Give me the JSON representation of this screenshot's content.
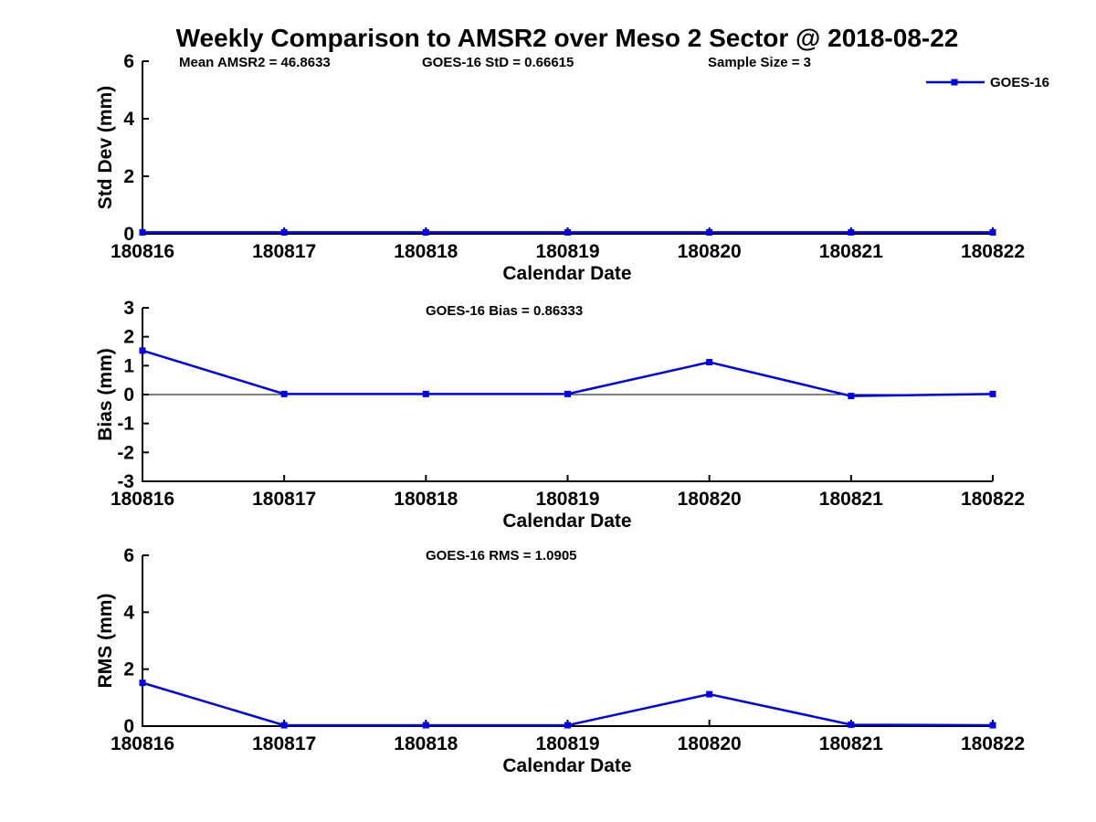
{
  "header": {
    "title": "Weekly Comparison to AMSR2 over Meso 2 Sector @ 2018-08-22",
    "annotations": [
      "Mean AMSR2 = 46.8633",
      "GOES-16 StD = 0.66615",
      "Sample Size = 3"
    ]
  },
  "legend": {
    "label": "GOES-16",
    "marker": "square",
    "color": "#0000ee"
  },
  "colors": {
    "line": "#0000ee",
    "axis": "#000000",
    "text": "#000000",
    "background": "#ffffff"
  },
  "chart_data": [
    {
      "id": "std-dev",
      "type": "line",
      "title": "",
      "xlabel": "Calendar Date",
      "ylabel": "Std Dev (mm)",
      "categories": [
        "180816",
        "180817",
        "180818",
        "180819",
        "180820",
        "180821",
        "180822"
      ],
      "series": [
        {
          "name": "GOES-16",
          "values": [
            0.05,
            0.05,
            0.05,
            0.05,
            0.05,
            0.05,
            0.05
          ]
        }
      ],
      "ylim": [
        0,
        6
      ],
      "yticks": [
        0,
        2,
        4,
        6
      ],
      "zero_line": false,
      "grid": false,
      "legend_position": "top-right-outside"
    },
    {
      "id": "bias",
      "type": "line",
      "title": "GOES-16 Bias  = 0.86333",
      "xlabel": "Calendar Date",
      "ylabel": "Bias (mm)",
      "categories": [
        "180816",
        "180817",
        "180818",
        "180819",
        "180820",
        "180821",
        "180822"
      ],
      "series": [
        {
          "name": "GOES-16",
          "values": [
            1.52,
            0.02,
            0.02,
            0.02,
            1.12,
            -0.05,
            0.02
          ]
        }
      ],
      "ylim": [
        -3,
        3
      ],
      "yticks": [
        -3,
        -2,
        -1,
        0,
        1,
        2,
        3
      ],
      "zero_line": true,
      "grid": false,
      "legend_position": "none"
    },
    {
      "id": "rms",
      "type": "line",
      "title": "GOES-16 RMS = 1.0905",
      "xlabel": "Calendar Date",
      "ylabel": "RMS (mm)",
      "categories": [
        "180816",
        "180817",
        "180818",
        "180819",
        "180820",
        "180821",
        "180822"
      ],
      "series": [
        {
          "name": "GOES-16",
          "values": [
            1.52,
            0.03,
            0.03,
            0.03,
            1.12,
            0.05,
            0.03
          ]
        }
      ],
      "ylim": [
        0,
        6
      ],
      "yticks": [
        0,
        2,
        4,
        6
      ],
      "zero_line": false,
      "grid": false,
      "legend_position": "none"
    }
  ]
}
